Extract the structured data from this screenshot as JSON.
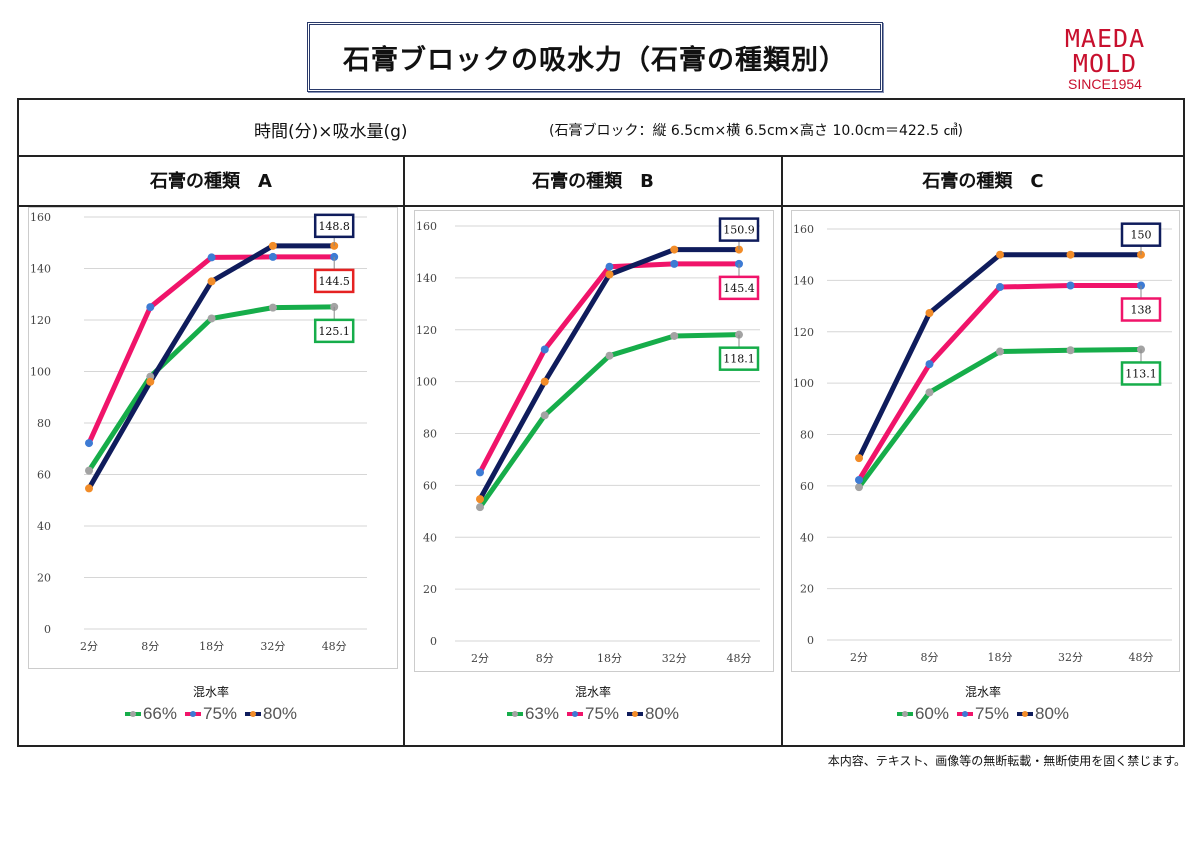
{
  "title": "石膏ブロックの吸水力（石膏の種類別）",
  "logo": {
    "line1": "MAEDA",
    "line2": "MOLD",
    "line3": "SINCE1954"
  },
  "subheader": {
    "axes": "時間(分)×吸水量(g)",
    "note": "(石膏ブロック：縦 6.5cm×横 6.5cm×高さ 10.0cm＝422.5 ㎤)"
  },
  "footer": "本内容、テキスト、画像等の無断転載・無断使用を固く禁じます。",
  "colors": {
    "green": "#16ad4a",
    "pink": "#f0146a",
    "navy": "#0f1c5c",
    "gray_marker": "#a3a3a3",
    "blue_marker": "#3d7bd4",
    "orange_marker": "#f28c28"
  },
  "chart_data": [
    {
      "type": "line",
      "title": "石膏の種類　A",
      "legend_title": "混水率",
      "categories": [
        "2分",
        "8分",
        "18分",
        "32分",
        "48分"
      ],
      "ylim": [
        0,
        160
      ],
      "yticks": [
        "0",
        "20",
        "40",
        "60",
        "80",
        "100",
        "120",
        "140",
        "160"
      ],
      "series": [
        {
          "name": "66%",
          "values": [
            61.5,
            98,
            120.6,
            124.8,
            125.1
          ],
          "label": "125.1",
          "label_color": "#16ad4a"
        },
        {
          "name": "75%",
          "values": [
            72.2,
            125,
            144.3,
            144.5,
            144.5
          ],
          "label": "144.5",
          "label_color": "#e52222"
        },
        {
          "name": "80%",
          "values": [
            54.6,
            96,
            135,
            148.8,
            148.8
          ],
          "label": "148.8",
          "label_color": "#0f1c5c"
        }
      ]
    },
    {
      "type": "line",
      "title": "石膏の種類　B",
      "legend_title": "混水率",
      "categories": [
        "2分",
        "8分",
        "18分",
        "32分",
        "48分"
      ],
      "ylim": [
        0,
        160
      ],
      "yticks": [
        "0",
        "20",
        "40",
        "60",
        "80",
        "100",
        "120",
        "140",
        "160"
      ],
      "series": [
        {
          "name": "63%",
          "values": [
            51.6,
            87,
            110,
            117.6,
            118.1
          ],
          "label": "118.1",
          "label_color": "#16ad4a"
        },
        {
          "name": "75%",
          "values": [
            65,
            112.4,
            144.3,
            145.4,
            145.4
          ],
          "label": "145.4",
          "label_color": "#f0146a"
        },
        {
          "name": "80%",
          "values": [
            54.7,
            100,
            141.3,
            150.9,
            150.9
          ],
          "label": "150.9",
          "label_color": "#0f1c5c"
        }
      ]
    },
    {
      "type": "line",
      "title": "石膏の種類　C",
      "legend_title": "混水率",
      "categories": [
        "2分",
        "8分",
        "18分",
        "32分",
        "48分"
      ],
      "ylim": [
        0,
        160
      ],
      "yticks": [
        "0",
        "20",
        "40",
        "60",
        "80",
        "100",
        "120",
        "140",
        "160"
      ],
      "series": [
        {
          "name": "60%",
          "values": [
            59.5,
            96.4,
            112.3,
            112.8,
            113.1
          ],
          "label": "113.1",
          "label_color": "#16ad4a"
        },
        {
          "name": "75%",
          "values": [
            62.3,
            107.4,
            137.4,
            138,
            138
          ],
          "label": "138",
          "label_color": "#f0146a"
        },
        {
          "name": "80%",
          "values": [
            70.8,
            127.3,
            150,
            150,
            150
          ],
          "label": "150",
          "label_color": "#0f1c5c"
        }
      ]
    }
  ]
}
